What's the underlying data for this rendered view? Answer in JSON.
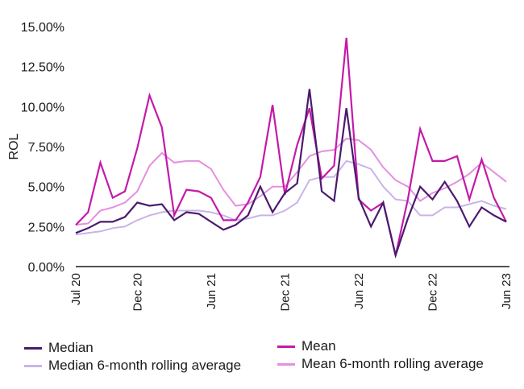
{
  "chart_data": {
    "type": "line",
    "xlabel": "",
    "ylabel": "ROL",
    "ylim": [
      0,
      15
    ],
    "yticks": [
      "0.00%",
      "2.50%",
      "5.00%",
      "7.50%",
      "10.00%",
      "12.50%",
      "15.00%"
    ],
    "ytick_values": [
      0,
      2.5,
      5,
      7.5,
      10,
      12.5,
      15
    ],
    "x": [
      "Jul 20",
      "Aug 20",
      "Sep 20",
      "Oct 20",
      "Nov 20",
      "Dec 20",
      "Jan 21",
      "Feb 21",
      "Mar 21",
      "Apr 21",
      "May 21",
      "Jun 21",
      "Jul 21",
      "Aug 21",
      "Sep 21",
      "Oct 21",
      "Nov 21",
      "Dec 21",
      "Jan 22",
      "Feb 22",
      "Mar 22",
      "Apr 22",
      "May 22",
      "Jun 22",
      "Jul 22",
      "Aug 22",
      "Sep 22",
      "Oct 22",
      "Nov 22",
      "Dec 22",
      "Jan 23",
      "Feb 23",
      "Mar 23",
      "Apr 23",
      "May 23",
      "Jun 23"
    ],
    "xtick_labels": [
      "Jul 20",
      "Dec 20",
      "Jun 21",
      "Dec 21",
      "Jun 22",
      "Dec 22",
      "Jun 23"
    ],
    "series": [
      {
        "name": "Median",
        "color": "#4b1a6e",
        "values": [
          2.1,
          2.4,
          2.8,
          2.8,
          3.1,
          4.0,
          3.8,
          3.9,
          2.9,
          3.4,
          3.3,
          2.8,
          2.3,
          2.6,
          3.2,
          5.0,
          3.4,
          4.6,
          5.2,
          11.1,
          4.7,
          4.1,
          9.9,
          4.3,
          2.5,
          4.0,
          0.7,
          3.0,
          5.0,
          4.2,
          5.3,
          4.1,
          2.5,
          3.7,
          3.2,
          2.8
        ]
      },
      {
        "name": "Mean",
        "color": "#c41aa8",
        "values": [
          2.6,
          3.4,
          6.5,
          4.3,
          4.7,
          7.4,
          10.7,
          8.7,
          3.2,
          4.8,
          4.7,
          4.3,
          2.9,
          2.9,
          4.0,
          5.6,
          10.1,
          4.5,
          7.6,
          9.9,
          5.5,
          6.3,
          14.3,
          4.2,
          3.5,
          4.0,
          0.7,
          4.2,
          8.6,
          6.6,
          6.6,
          6.9,
          4.2,
          6.7,
          4.3,
          2.8
        ]
      },
      {
        "name": "Median 6-month rolling average",
        "color": "#c9b4e8",
        "values": [
          2.0,
          2.1,
          2.2,
          2.4,
          2.5,
          2.9,
          3.2,
          3.4,
          3.5,
          3.5,
          3.5,
          3.4,
          3.2,
          2.9,
          3.0,
          3.2,
          3.2,
          3.5,
          4.0,
          5.4,
          5.6,
          5.6,
          6.6,
          6.4,
          6.1,
          5.0,
          4.2,
          4.1,
          3.2,
          3.2,
          3.7,
          3.7,
          3.9,
          4.1,
          3.8,
          3.6
        ]
      },
      {
        "name": "Mean 6-month rolling average",
        "color": "#e58fe0",
        "values": [
          2.6,
          2.7,
          3.5,
          3.7,
          4.0,
          4.7,
          6.3,
          7.1,
          6.5,
          6.6,
          6.6,
          6.1,
          4.8,
          3.8,
          3.9,
          4.4,
          5.0,
          5.0,
          5.9,
          6.9,
          7.2,
          7.3,
          8.0,
          7.9,
          7.3,
          6.2,
          5.4,
          5.0,
          4.1,
          4.6,
          4.9,
          5.3,
          5.8,
          6.5,
          5.9,
          5.3
        ]
      }
    ],
    "grid": false,
    "legend_position": "bottom"
  },
  "legend": {
    "median": "Median",
    "mean": "Mean",
    "median_rolling": "Median 6-month rolling average",
    "mean_rolling": "Mean 6-month rolling average"
  }
}
